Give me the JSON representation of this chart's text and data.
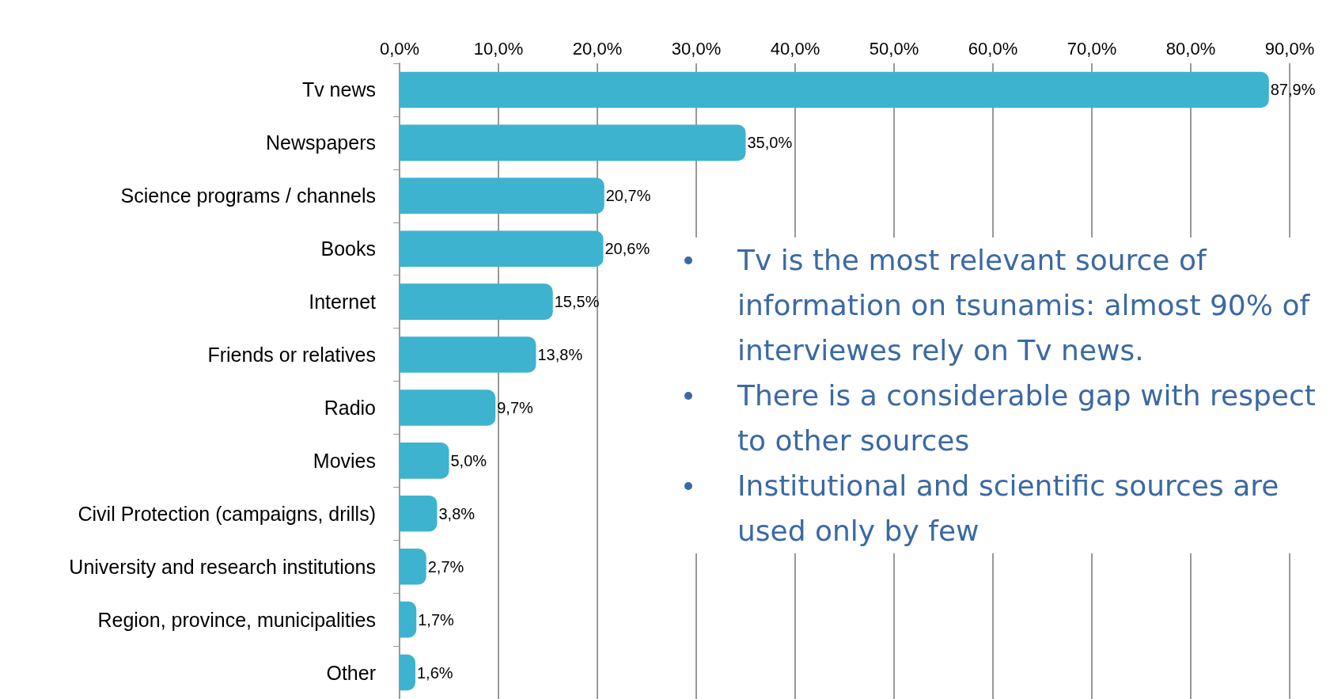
{
  "chart_data": {
    "type": "bar",
    "orientation": "horizontal",
    "categories": [
      "Tv news",
      "Newspapers",
      "Science programs / channels",
      "Books",
      "Internet",
      "Friends or relatives",
      "Radio",
      "Movies",
      "Civil Protection (campaigns, drills)",
      "University and research institutions",
      "Region, province, municipalities",
      "Other"
    ],
    "values": [
      87.9,
      35.0,
      20.7,
      20.6,
      15.5,
      13.8,
      9.7,
      5.0,
      3.8,
      2.7,
      1.7,
      1.6
    ],
    "value_labels": [
      "87,9%",
      "35,0%",
      "20,7%",
      "20,6%",
      "15,5%",
      "13,8%",
      "9,7%",
      "5,0%",
      "3,8%",
      "2,7%",
      "1,7%",
      "1,6%"
    ],
    "color": "#3db3cf",
    "xlim": [
      0,
      90
    ],
    "xticks": [
      {
        "value": 0,
        "label": "0,0%"
      },
      {
        "value": 10,
        "label": "10,0%"
      },
      {
        "value": 20,
        "label": "20,0%"
      },
      {
        "value": 30,
        "label": "30,0%"
      },
      {
        "value": 40,
        "label": "40,0%"
      },
      {
        "value": 50,
        "label": "50,0%"
      },
      {
        "value": 60,
        "label": "60,0%"
      },
      {
        "value": 70,
        "label": "70,0%"
      },
      {
        "value": 80,
        "label": "80,0%"
      },
      {
        "value": 90,
        "label": "90,0%"
      }
    ],
    "grid": "x",
    "annotations": [
      "Tv is the most relevant source of information on tsunamis: almost 90% of interviewes rely on Tv news.",
      "There is a considerable gap with respect to other sources",
      "Institutional and scientific sources are used only by few"
    ]
  }
}
